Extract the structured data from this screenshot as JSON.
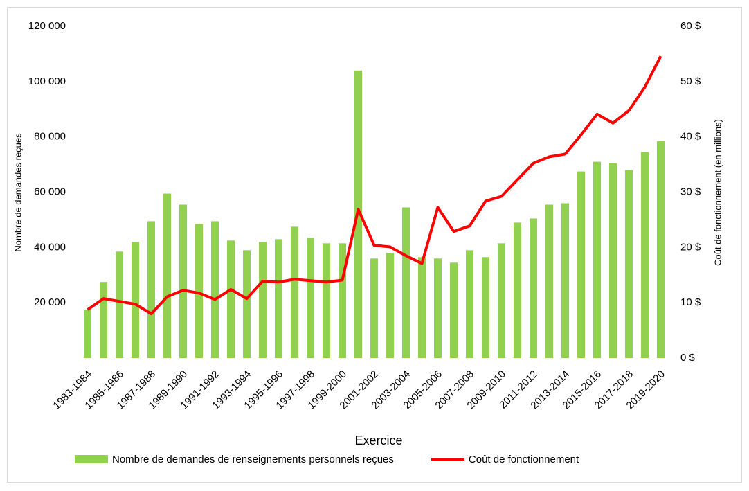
{
  "chart_data": {
    "type": "bar-line",
    "x_label": "Exercice",
    "y_label": "Nombre de demandes reçues",
    "y2_label": "Coût de fonctionnement (en millions)",
    "categories": [
      "1983-1984",
      null,
      "1985-1986",
      null,
      "1987-1988",
      null,
      "1989-1990",
      null,
      "1991-1992",
      null,
      "1993-1994",
      null,
      "1995-1996",
      null,
      "1997-1998",
      null,
      "1999-2000",
      null,
      "2001-2002",
      null,
      "2003-2004",
      null,
      "2005-2006",
      null,
      "2007-2008",
      null,
      "2009-2010",
      null,
      "2011-2012",
      null,
      "2013-2014",
      null,
      "2015-2016",
      null,
      "2017-2018",
      null,
      "2019-2020"
    ],
    "series": [
      {
        "name": "Nombre de demandes de renseignements personnels reçues",
        "type": "bar",
        "color": "#92d050",
        "values": [
          17500,
          27500,
          38500,
          42000,
          49500,
          59500,
          55500,
          48500,
          49500,
          42500,
          39000,
          42000,
          43000,
          47500,
          43500,
          41500,
          41500,
          104000,
          36000,
          38000,
          54500,
          36500,
          36000,
          34500,
          39000,
          36500,
          41500,
          49000,
          50500,
          55500,
          56000,
          67500,
          71000,
          70500,
          68000,
          74500,
          78500
        ]
      },
      {
        "name": "Coût de fonctionnement",
        "type": "line",
        "axis": "y2",
        "color": "#ff0000",
        "values": [
          8.75,
          10.75,
          10.25,
          9.75,
          8,
          11.1,
          12.25,
          11.75,
          10.6,
          12.4,
          10.75,
          13.9,
          13.75,
          14.25,
          14,
          13.75,
          14.1,
          26.9,
          20.4,
          20.1,
          18.5,
          17.1,
          27.25,
          22.9,
          23.9,
          28.4,
          29.25,
          32.25,
          35.25,
          36.4,
          36.9,
          40.4,
          44.1,
          42.5,
          44.75,
          49,
          54.6
        ]
      }
    ],
    "ylim": [
      0,
      120000
    ],
    "yticks": [
      {
        "value": 20000,
        "label": "20 000"
      },
      {
        "value": 40000,
        "label": "40 000"
      },
      {
        "value": 60000,
        "label": "60 000"
      },
      {
        "value": 80000,
        "label": "80 000"
      },
      {
        "value": 100000,
        "label": "100 000"
      },
      {
        "value": 120000,
        "label": "120 000"
      }
    ],
    "y2lim": [
      0,
      60
    ],
    "y2ticks": [
      {
        "value": 0,
        "label": "0 $"
      },
      {
        "value": 10,
        "label": "10 $"
      },
      {
        "value": 20,
        "label": "20 $"
      },
      {
        "value": 30,
        "label": "30 $"
      },
      {
        "value": 40,
        "label": "40 $"
      },
      {
        "value": 50,
        "label": "50 $"
      },
      {
        "value": 60,
        "label": "60 $"
      }
    ],
    "grid": false,
    "legend": "bottom"
  }
}
